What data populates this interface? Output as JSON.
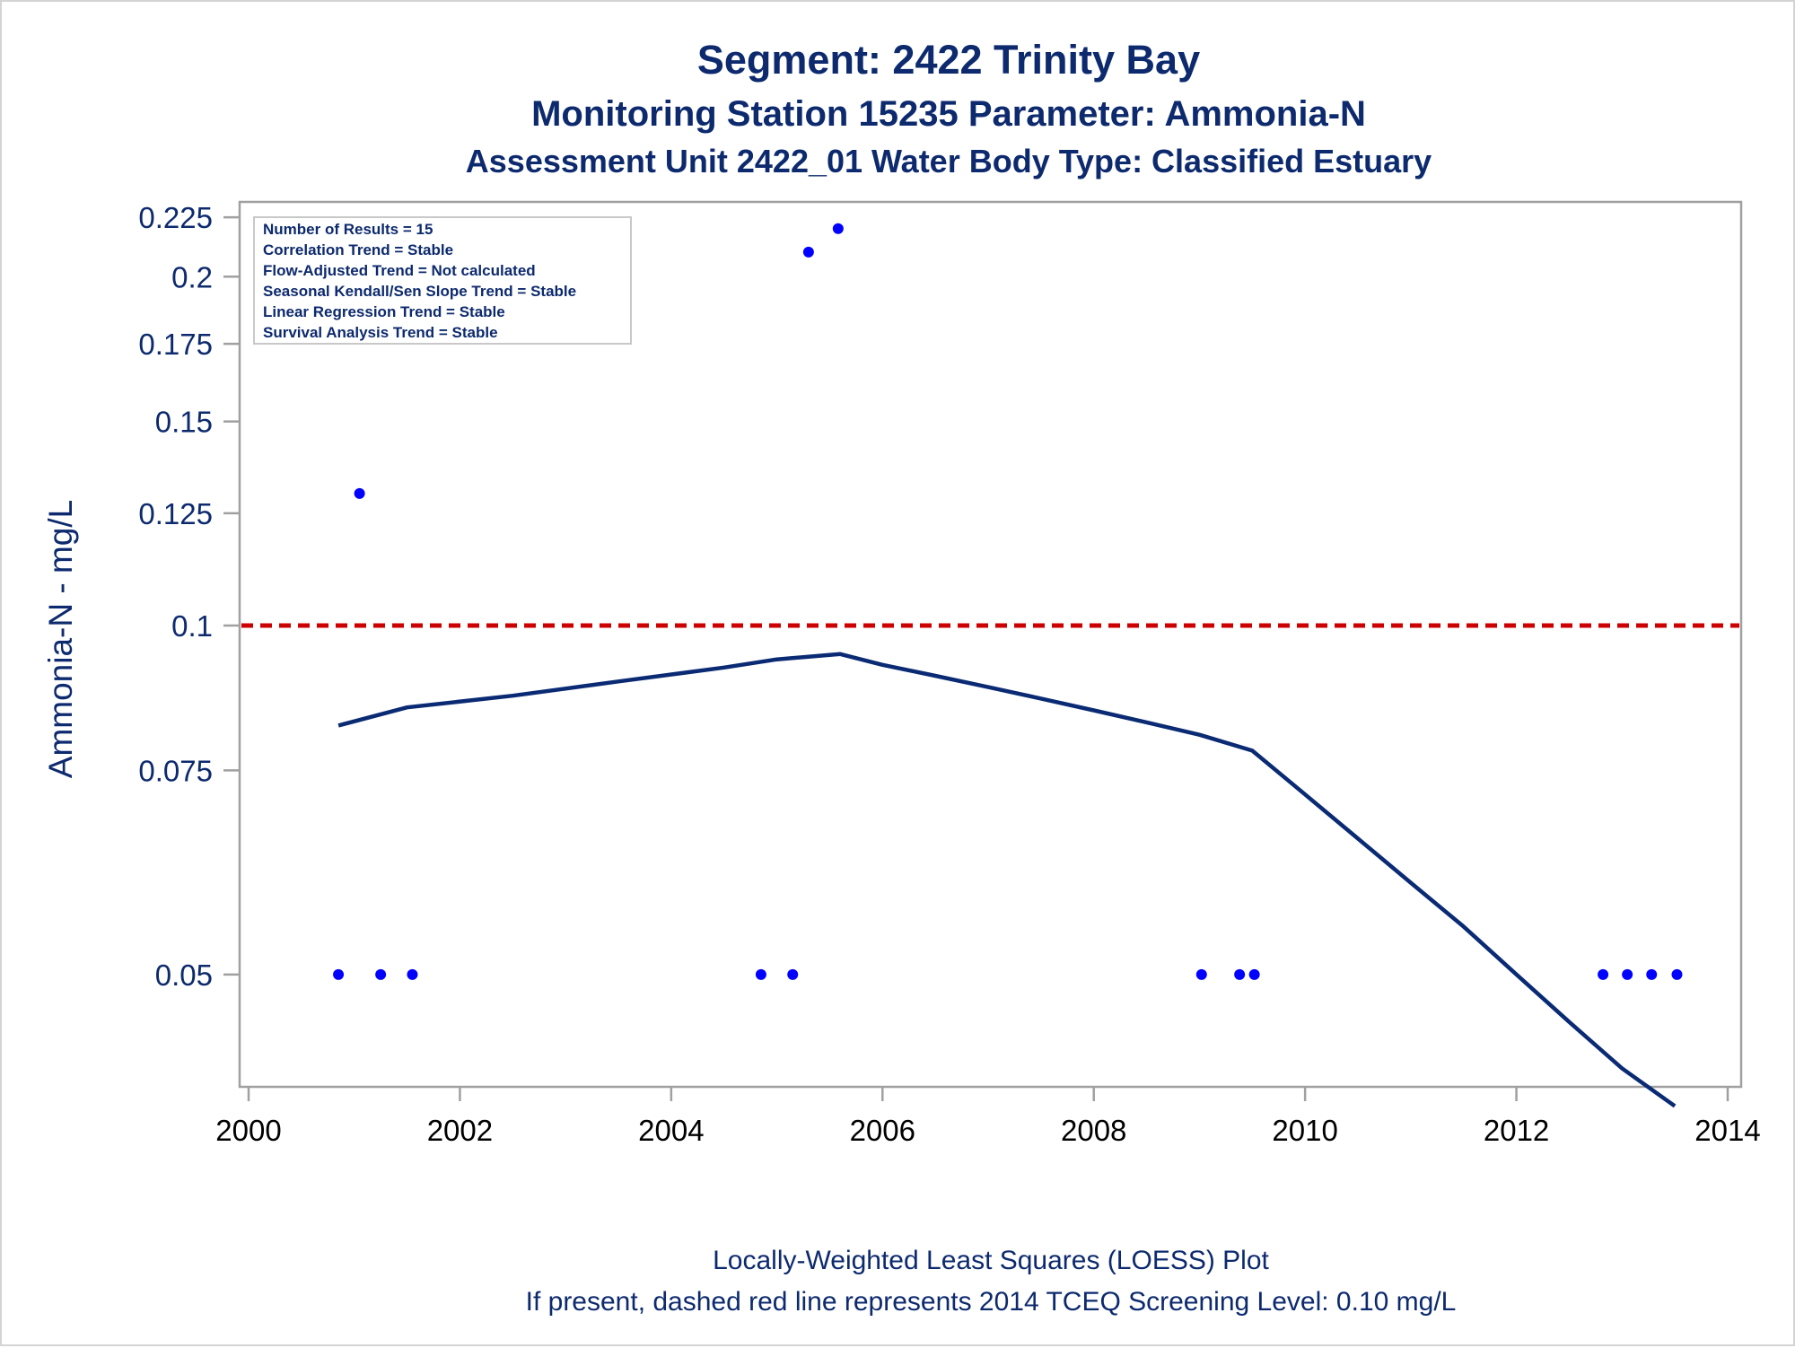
{
  "chart_data": {
    "type": "scatter",
    "title": "Segment: 2422  Trinity Bay",
    "subtitle": "Monitoring Station 15235 Parameter: Ammonia-N",
    "subtitle2": "Assessment Unit 2422_01   Water Body Type: Classified Estuary",
    "xlabel": "",
    "ylabel": "Ammonia-N - mg/L",
    "y_scale": "log",
    "xlim": [
      2000,
      2014
    ],
    "ylim": [
      0.04,
      0.232
    ],
    "x_ticks": [
      2000,
      2002,
      2004,
      2006,
      2008,
      2010,
      2012,
      2014
    ],
    "y_ticks": [
      0.05,
      0.075,
      0.1,
      0.125,
      0.15,
      0.175,
      0.2,
      0.225
    ],
    "x_tick_labels": [
      "2000",
      "2002",
      "2004",
      "2006",
      "2008",
      "2010",
      "2012",
      "2014"
    ],
    "y_tick_labels": [
      "0.05",
      "0.075",
      "0.1",
      "0.125",
      "0.15",
      "0.175",
      "0.2",
      "0.225"
    ],
    "grid": false,
    "stats_box_placement": "top-left",
    "stats": [
      "Number of Results = 15",
      "Correlation Trend = Stable",
      "Flow-Adjusted Trend = Not calculated",
      "Seasonal Kendall/Sen Slope Trend = Stable",
      "Linear Regression Trend = Stable",
      "Survival Analysis Trend = Stable"
    ],
    "points": {
      "x": [
        2000.85,
        2001.05,
        2001.25,
        2001.55,
        2004.85,
        2005.15,
        2005.3,
        2005.58,
        2009.02,
        2009.38,
        2009.52,
        2012.82,
        2013.05,
        2013.28,
        2013.52
      ],
      "y": [
        0.05,
        0.13,
        0.05,
        0.05,
        0.05,
        0.05,
        0.21,
        0.22,
        0.05,
        0.05,
        0.05,
        0.05,
        0.05,
        0.05,
        0.05
      ]
    },
    "loess_line": {
      "x": [
        2000.85,
        2001.5,
        2002.5,
        2003.5,
        2004.5,
        2005.0,
        2005.3,
        2005.6,
        2006.0,
        2006.5,
        2007.0,
        2007.5,
        2008.0,
        2008.5,
        2009.0,
        2009.5,
        2010.0,
        2010.5,
        2011.0,
        2011.5,
        2012.0,
        2012.5,
        2013.0,
        2013.5
      ],
      "y": [
        0.082,
        0.085,
        0.087,
        0.0895,
        0.092,
        0.0935,
        0.094,
        0.0945,
        0.0925,
        0.0905,
        0.0885,
        0.0865,
        0.0845,
        0.0825,
        0.0805,
        0.078,
        0.0715,
        0.0655,
        0.06,
        0.055,
        0.05,
        0.0455,
        0.0415,
        0.0385
      ]
    },
    "reference_line": {
      "y": 0.1,
      "color": "#cc0000",
      "style": "dashed"
    },
    "colors": {
      "points": "#0000ff",
      "loess": "#0a2b74",
      "text": "#0d2a6e",
      "axis": "#a0a0a0"
    },
    "footnote1": "Locally-Weighted Least Squares (LOESS) Plot",
    "footnote2": "If present, dashed red line represents 2014 TCEQ Screening Level: 0.10 mg/L"
  }
}
